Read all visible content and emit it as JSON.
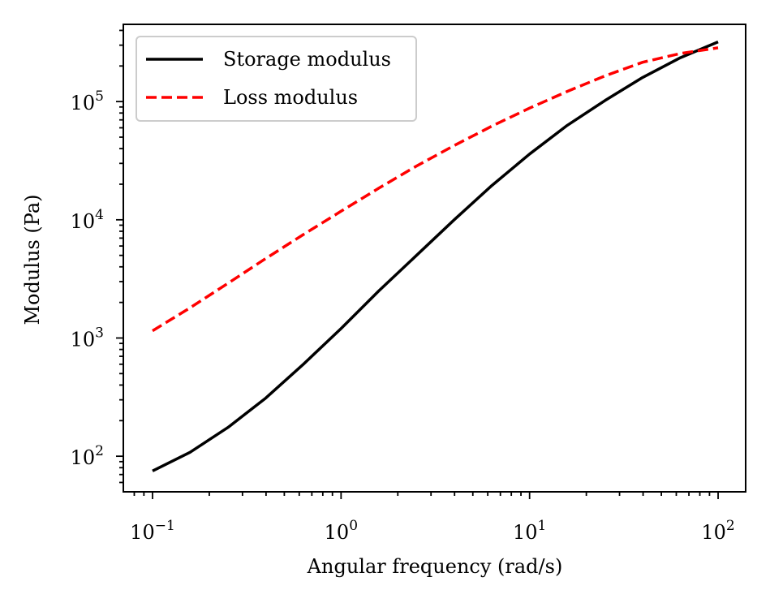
{
  "chart_data": {
    "type": "line",
    "title": "",
    "xlabel": "Angular frequency (rad/s)",
    "ylabel": "Modulus (Pa)",
    "xscale": "log",
    "yscale": "log",
    "xlim": [
      0.07,
      140
    ],
    "ylim": [
      50,
      450000
    ],
    "grid": false,
    "legend": {
      "position": "top-left"
    },
    "x_ticks": [
      {
        "value": 0.1,
        "base": "10",
        "exp": "−1"
      },
      {
        "value": 1,
        "base": "10",
        "exp": "0"
      },
      {
        "value": 10,
        "base": "10",
        "exp": "1"
      },
      {
        "value": 100,
        "base": "10",
        "exp": "2"
      }
    ],
    "y_ticks": [
      {
        "value": 100,
        "base": "10",
        "exp": "2"
      },
      {
        "value": 1000,
        "base": "10",
        "exp": "3"
      },
      {
        "value": 10000,
        "base": "10",
        "exp": "4"
      },
      {
        "value": 100000,
        "base": "10",
        "exp": "5"
      }
    ],
    "series": [
      {
        "name": "Storage modulus",
        "color": "#000000",
        "dash": "solid",
        "x": [
          0.1,
          0.158,
          0.251,
          0.398,
          0.631,
          1.0,
          1.585,
          2.512,
          3.981,
          6.31,
          10.0,
          15.85,
          25.12,
          39.81,
          63.1,
          100.0
        ],
        "y": [
          75,
          108,
          175,
          310,
          600,
          1200,
          2500,
          5000,
          10000,
          19500,
          36000,
          63000,
          102000,
          160000,
          235000,
          320000
        ]
      },
      {
        "name": "Loss modulus",
        "color": "#ff0000",
        "dash": "dashed",
        "x": [
          0.1,
          0.158,
          0.251,
          0.398,
          0.631,
          1.0,
          1.585,
          2.512,
          3.981,
          6.31,
          10.0,
          15.85,
          25.12,
          39.81,
          63.1,
          100.0
        ],
        "y": [
          1150,
          1800,
          2900,
          4700,
          7500,
          11800,
          18500,
          28500,
          42500,
          62000,
          88000,
          122000,
          165000,
          215000,
          255000,
          285000
        ]
      }
    ]
  }
}
